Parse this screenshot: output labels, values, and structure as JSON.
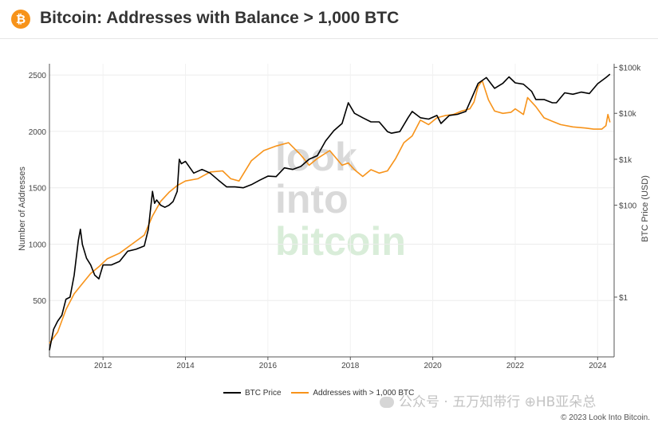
{
  "header": {
    "logo_glyph": "₿",
    "title": "Bitcoin: Addresses with Balance > 1,000 BTC"
  },
  "chart_data": {
    "type": "line",
    "title": "Bitcoin: Addresses with Balance > 1,000 BTC",
    "xlabel": "",
    "ylabel": "Number of Addresses",
    "y2label": "BTC Price (USD)",
    "xlim": [
      2010.7,
      2024.4
    ],
    "ylim": [
      0,
      2600
    ],
    "y2_scale": "log",
    "y2lim": [
      0.05,
      120000
    ],
    "x_ticks": [
      2012,
      2014,
      2016,
      2018,
      2020,
      2022,
      2024
    ],
    "x_tick_labels": [
      "2012",
      "2014",
      "2016",
      "2018",
      "2020",
      "2022",
      "2024"
    ],
    "y_ticks": [
      500,
      1000,
      1500,
      2000,
      2500
    ],
    "y_tick_labels": [
      "500",
      "1000",
      "1500",
      "2000",
      "2500"
    ],
    "y2_ticks": [
      1,
      100,
      1000,
      10000,
      100000
    ],
    "y2_tick_labels": [
      "$1",
      "$100",
      "$1k",
      "$10k",
      "$100k"
    ],
    "grid": true,
    "legend_position": "bottom",
    "background_watermark": [
      "look",
      "into",
      "bitcoin"
    ],
    "series": [
      {
        "name": "BTC Price",
        "axis": "right",
        "color": "#000000",
        "x": [
          2010.7,
          2010.8,
          2010.9,
          2011.0,
          2011.1,
          2011.2,
          2011.3,
          2011.4,
          2011.45,
          2011.5,
          2011.6,
          2011.7,
          2011.8,
          2011.9,
          2012.0,
          2012.2,
          2012.4,
          2012.6,
          2012.8,
          2013.0,
          2013.1,
          2013.2,
          2013.25,
          2013.3,
          2013.4,
          2013.5,
          2013.6,
          2013.7,
          2013.8,
          2013.85,
          2013.9,
          2014.0,
          2014.2,
          2014.4,
          2014.6,
          2014.8,
          2015.0,
          2015.2,
          2015.4,
          2015.6,
          2015.8,
          2016.0,
          2016.2,
          2016.4,
          2016.6,
          2016.8,
          2017.0,
          2017.2,
          2017.4,
          2017.6,
          2017.8,
          2017.95,
          2018.1,
          2018.3,
          2018.5,
          2018.7,
          2018.9,
          2019.0,
          2019.2,
          2019.4,
          2019.5,
          2019.7,
          2019.9,
          2020.1,
          2020.2,
          2020.4,
          2020.6,
          2020.8,
          2020.95,
          2021.1,
          2021.3,
          2021.5,
          2021.7,
          2021.85,
          2022.0,
          2022.2,
          2022.4,
          2022.5,
          2022.7,
          2022.9,
          2023.0,
          2023.2,
          2023.4,
          2023.6,
          2023.8,
          2024.0,
          2024.2,
          2024.3
        ],
        "y": [
          0.07,
          0.2,
          0.3,
          0.4,
          0.9,
          1.0,
          3.0,
          17,
          30,
          14,
          7,
          5,
          3,
          2.5,
          5,
          5,
          6,
          10,
          11,
          13,
          30,
          200,
          110,
          130,
          100,
          90,
          100,
          120,
          200,
          1000,
          800,
          900,
          500,
          600,
          500,
          350,
          250,
          250,
          240,
          280,
          350,
          430,
          420,
          650,
          600,
          700,
          1000,
          1200,
          2500,
          4200,
          6000,
          17000,
          10000,
          8000,
          6500,
          6500,
          4000,
          3700,
          4000,
          8000,
          11000,
          8000,
          7500,
          9000,
          6000,
          9000,
          9500,
          11000,
          22000,
          45000,
          60000,
          35000,
          45000,
          62000,
          46000,
          43000,
          30000,
          20000,
          20000,
          17000,
          17000,
          28000,
          26000,
          29000,
          27000,
          44000,
          60000,
          71000
        ]
      },
      {
        "name": "Addresses with > 1,000 BTC",
        "axis": "left",
        "color": "#f7931a",
        "x": [
          2010.7,
          2010.9,
          2011.1,
          2011.3,
          2011.5,
          2011.7,
          2011.9,
          2012.1,
          2012.4,
          2012.7,
          2013.0,
          2013.2,
          2013.4,
          2013.6,
          2013.8,
          2014.0,
          2014.3,
          2014.6,
          2014.9,
          2015.1,
          2015.3,
          2015.6,
          2015.9,
          2016.2,
          2016.5,
          2016.8,
          2017.0,
          2017.2,
          2017.5,
          2017.8,
          2017.95,
          2018.1,
          2018.3,
          2018.5,
          2018.7,
          2018.9,
          2019.1,
          2019.3,
          2019.5,
          2019.7,
          2019.9,
          2020.1,
          2020.3,
          2020.5,
          2020.7,
          2020.9,
          2021.0,
          2021.1,
          2021.2,
          2021.35,
          2021.5,
          2021.7,
          2021.9,
          2022.0,
          2022.2,
          2022.3,
          2022.5,
          2022.7,
          2022.9,
          2023.1,
          2023.4,
          2023.7,
          2023.9,
          2024.1,
          2024.2,
          2024.25,
          2024.3
        ],
        "y": [
          120,
          220,
          420,
          560,
          650,
          740,
          800,
          870,
          920,
          1000,
          1080,
          1250,
          1380,
          1460,
          1520,
          1560,
          1580,
          1640,
          1650,
          1580,
          1560,
          1740,
          1830,
          1870,
          1900,
          1790,
          1700,
          1760,
          1830,
          1700,
          1720,
          1660,
          1600,
          1660,
          1630,
          1650,
          1760,
          1900,
          1960,
          2100,
          2060,
          2120,
          2140,
          2150,
          2180,
          2200,
          2260,
          2400,
          2450,
          2280,
          2180,
          2160,
          2170,
          2200,
          2150,
          2300,
          2220,
          2120,
          2090,
          2060,
          2040,
          2030,
          2020,
          2020,
          2050,
          2150,
          2080
        ]
      }
    ]
  },
  "legend": {
    "btc_label": "BTC Price",
    "addr_label": "Addresses with > 1,000 BTC",
    "btc_color": "#000000",
    "addr_color": "#f7931a"
  },
  "footer": {
    "watermark": "公众号 · 五万知带行 ⊕HB亚朵总",
    "copyright": "© 2023 Look Into Bitcoin."
  }
}
